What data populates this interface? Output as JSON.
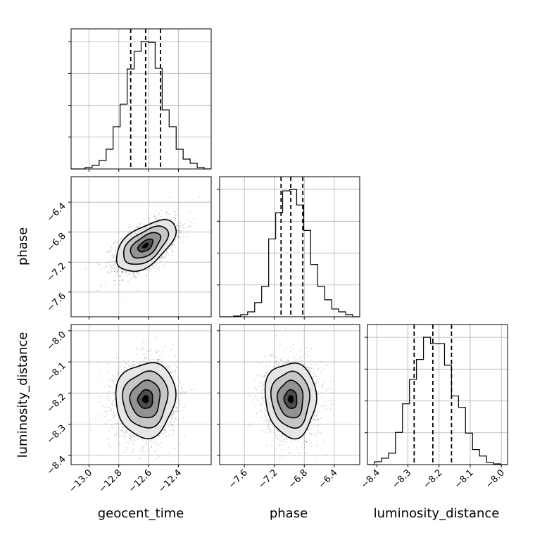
{
  "chart_data": {
    "type": "corner",
    "parameters": [
      "geocent_time",
      "phase",
      "luminosity_distance"
    ],
    "axis_labels": [
      "geocent_time",
      "phase",
      "luminosity_distance"
    ],
    "ranges": {
      "geocent_time": [
        -13.12,
        -12.18
      ],
      "phase": [
        -7.93,
        -6.06
      ],
      "luminosity_distance": [
        -8.43,
        -7.98
      ]
    },
    "ticks": {
      "geocent_time": [
        "−13.0",
        "−12.8",
        "−12.6",
        "−12.4"
      ],
      "phase": [
        "−7.6",
        "−7.2",
        "−6.8",
        "−6.4"
      ],
      "luminosity_distance": [
        "−8.4",
        "−8.3",
        "−8.2",
        "−8.1",
        "−8.0"
      ]
    },
    "tick_values": {
      "geocent_time": [
        -13.0,
        -12.8,
        -12.6,
        -12.4
      ],
      "phase": [
        -7.6,
        -7.2,
        -6.8,
        -6.4
      ],
      "luminosity_distance": [
        -8.4,
        -8.3,
        -8.2,
        -8.1,
        -8.0
      ]
    },
    "quantiles": {
      "geocent_time": [
        -12.72,
        -12.62,
        -12.52
      ],
      "phase": [
        -7.11,
        -6.98,
        -6.82
      ],
      "luminosity_distance": [
        -8.28,
        -8.22,
        -8.16
      ]
    },
    "histograms": {
      "geocent_time": {
        "edges": [
          -13.12,
          -13.073,
          -13.026,
          -12.979,
          -12.932,
          -12.885,
          -12.838,
          -12.791,
          -12.744,
          -12.697,
          -12.65,
          -12.603,
          -12.556,
          -12.509,
          -12.462,
          -12.415,
          -12.368,
          -12.321,
          -12.274,
          -12.227,
          -12.18
        ],
        "counts": [
          0,
          0,
          2,
          5,
          12,
          28,
          60,
          92,
          142,
          167,
          181,
          180,
          143,
          84,
          60,
          28,
          14,
          8,
          2,
          0
        ]
      },
      "phase": {
        "edges": [
          -7.93,
          -7.8365,
          -7.743,
          -7.6495,
          -7.556,
          -7.4625,
          -7.369,
          -7.2755,
          -7.182,
          -7.0885,
          -6.995,
          -6.9015,
          -6.808,
          -6.7145,
          -6.621,
          -6.5275,
          -6.434,
          -6.3405,
          -6.247,
          -6.1535,
          -6.06
        ],
        "counts": [
          0,
          0,
          1,
          3,
          7,
          20,
          43,
          110,
          147,
          178,
          180,
          158,
          122,
          74,
          43,
          24,
          11,
          7,
          3,
          0
        ]
      },
      "luminosity_distance": {
        "edges": [
          -8.43,
          -8.4075,
          -8.385,
          -8.3625,
          -8.34,
          -8.3175,
          -8.295,
          -8.2725,
          -8.25,
          -8.2275,
          -8.205,
          -8.1825,
          -8.16,
          -8.1375,
          -8.115,
          -8.0925,
          -8.07,
          -8.0475,
          -8.025,
          -8.0025,
          -7.98
        ],
        "counts": [
          0,
          4,
          9,
          16,
          45,
          85,
          119,
          147,
          178,
          169,
          169,
          139,
          96,
          80,
          44,
          21,
          12,
          3,
          1,
          0
        ]
      }
    },
    "sample_stats": {
      "mean": [
        -12.62,
        -6.98,
        -8.22
      ],
      "std": [
        0.1,
        0.17,
        0.06
      ],
      "correlations": [
        [
          1,
          0.55,
          0.05
        ],
        [
          0.55,
          1,
          -0.05
        ],
        [
          0.05,
          -0.05,
          1
        ]
      ]
    },
    "contour_levels_sigma": [
      0.5,
      1.0,
      1.5,
      2.0
    ],
    "colors": {
      "line": "#000000",
      "grid": "#b0b0b0",
      "points": "#888888"
    },
    "grid": true
  }
}
